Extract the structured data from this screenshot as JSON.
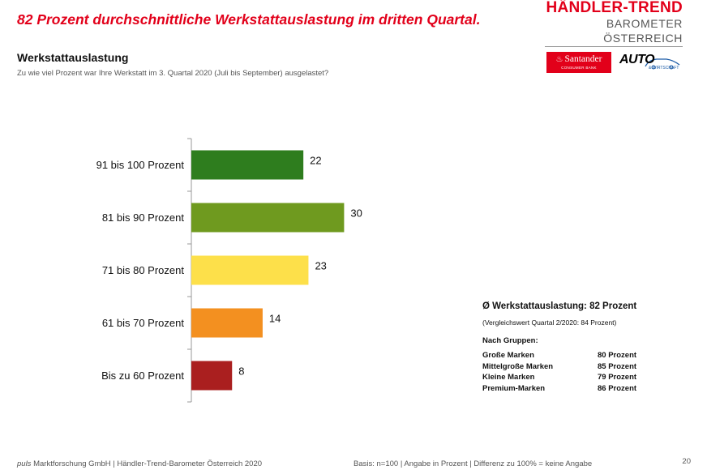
{
  "header": {
    "headline": "82 Prozent durchschnittliche Werkstattauslastung im dritten Quartal.",
    "brand_title": "HÄNDLER-TREND",
    "brand_subtitle": "BAROMETER ÖSTERREICH",
    "santander_name": "Santander",
    "santander_sub": "CONSUMER BANK",
    "auto_name": "AUTO",
    "auto_sub": "& WIRTSCHAFT"
  },
  "chart_data": {
    "type": "bar",
    "orientation": "horizontal",
    "title": "Werkstattauslastung",
    "subtitle": "Zu wie viel Prozent war Ihre Werkstatt im 3. Quartal 2020 (Juli bis September) ausgelastet?",
    "categories": [
      "91 bis 100 Prozent",
      "81 bis 90 Prozent",
      "71 bis 80 Prozent",
      "61 bis 70 Prozent",
      "Bis zu 60 Prozent"
    ],
    "values": [
      22,
      30,
      23,
      14,
      8
    ],
    "colors": [
      "#2e7d1e",
      "#6f9a1f",
      "#fde04a",
      "#f39020",
      "#aa1f1f"
    ],
    "xlim": [
      0,
      100
    ],
    "xlabel": "",
    "ylabel": "",
    "grid": false
  },
  "summary": {
    "headline": "Ø Werkstattauslastung: 82 Prozent",
    "note": "(Vergleichswert Quartal 2/2020: 84 Prozent)",
    "groups_title": "Nach Gruppen:",
    "groups": [
      {
        "name": "Große Marken",
        "value": "80 Prozent"
      },
      {
        "name": "Mittelgroße Marken",
        "value": "85 Prozent"
      },
      {
        "name": "Kleine Marken",
        "value": "79 Prozent"
      },
      {
        "name": "Premium-Marken",
        "value": "86 Prozent"
      }
    ]
  },
  "footer": {
    "company_italic": "puls",
    "company_rest": " Marktforschung GmbH | Händler-Trend-Barometer Österreich 2020",
    "basis": "Basis: n=100 | Angabe in Prozent | Differenz zu 100% = keine Angabe",
    "page_number": "20"
  }
}
